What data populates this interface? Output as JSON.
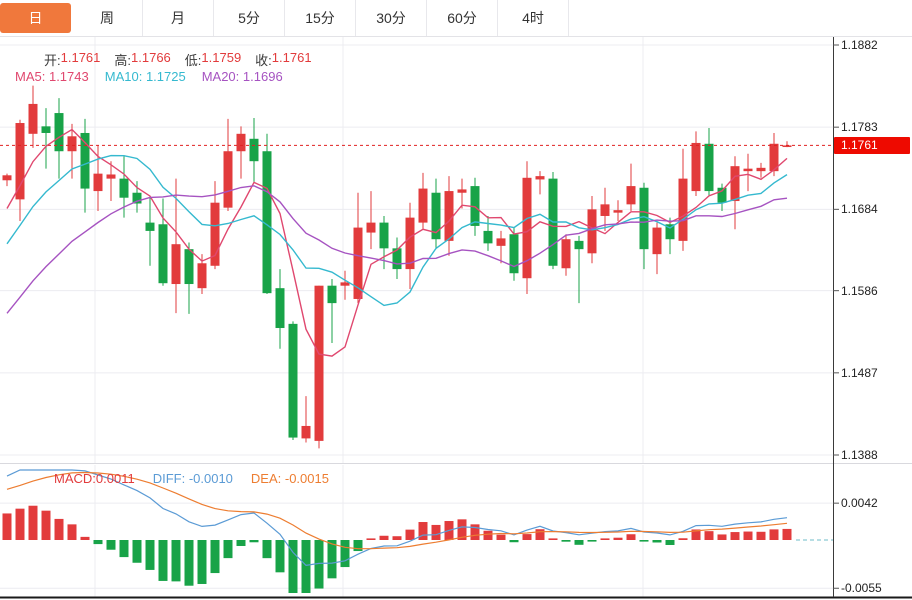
{
  "toolbar": {
    "tabs": [
      {
        "name": "tab-day",
        "label": "日",
        "active": true
      },
      {
        "name": "tab-week",
        "label": "周",
        "active": false
      },
      {
        "name": "tab-month",
        "label": "月",
        "active": false
      },
      {
        "name": "tab-5min",
        "label": "5分",
        "active": false
      },
      {
        "name": "tab-15min",
        "label": "15分",
        "active": false
      },
      {
        "name": "tab-30min",
        "label": "30分",
        "active": false
      },
      {
        "name": "tab-60min",
        "label": "60分",
        "active": false
      },
      {
        "name": "tab-4hour",
        "label": "4时",
        "active": false
      }
    ]
  },
  "main_chart": {
    "ohlc": {
      "open_label": "开:",
      "open": "1.1761",
      "high_label": "高:",
      "high": "1.1766",
      "low_label": "低:",
      "low": "1.1759",
      "close_label": "收:",
      "close": "1.1761"
    },
    "ma": {
      "ma5_label": "MA5:",
      "ma5": "1.1743",
      "ma10_label": "MA10:",
      "ma10": "1.1725",
      "ma20_label": "MA20:",
      "ma20": "1.1696"
    },
    "y_axis_ticks": [
      "1.1882",
      "1.1783",
      "1.1684",
      "1.1586",
      "1.1487",
      "1.1388"
    ],
    "current_price": "1.1761"
  },
  "macd_panel": {
    "macd_label": "MACD:",
    "macd": "0.0011",
    "diff_label": "DIFF:",
    "diff": "-0.0010",
    "dea_label": "DEA:",
    "dea": "-0.0015",
    "y_axis_ticks": [
      "0.0042",
      "-0.0055"
    ]
  },
  "colors": {
    "up": "#e23b3c",
    "down": "#18a348",
    "active_tab": "#f0783c",
    "ma5": "#e0486f",
    "ma10": "#35b9cf",
    "ma20": "#a653c1",
    "diff_line": "#5b9bd5",
    "dea_line": "#ed7d31",
    "price_tag_bg": "#ee0a00",
    "grid": "#ececf1",
    "axis_line": "#3a3a3a",
    "zero_dash": "#9fd4db",
    "current_price_line": "#e02020"
  },
  "chart_data": {
    "type": "candlestick",
    "timeframe": "日",
    "price_axis": {
      "max": 1.1882,
      "min": 1.1388,
      "ticks": [
        1.1882,
        1.1783,
        1.1684,
        1.1586,
        1.1487,
        1.1388
      ]
    },
    "current_price": 1.1761,
    "indicators": {
      "ma5": 1.1743,
      "ma10": 1.1725,
      "ma20": 1.1696,
      "macd": 0.0011,
      "diff": -0.001,
      "dea": -0.0015
    },
    "macd_axis": {
      "ticks": [
        0.0042,
        -0.0055
      ]
    },
    "candles_format": [
      "open",
      "high",
      "low",
      "close"
    ],
    "candles": [
      [
        1.1719,
        1.1727,
        1.1712,
        1.1725
      ],
      [
        1.1696,
        1.1792,
        1.167,
        1.1788
      ],
      [
        1.1775,
        1.1833,
        1.1758,
        1.1811
      ],
      [
        1.1784,
        1.1806,
        1.1733,
        1.1776
      ],
      [
        1.18,
        1.1818,
        1.1721,
        1.1754
      ],
      [
        1.1754,
        1.1787,
        1.1721,
        1.1772
      ],
      [
        1.1776,
        1.1793,
        1.168,
        1.1709
      ],
      [
        1.1706,
        1.1761,
        1.1682,
        1.1727
      ],
      [
        1.1721,
        1.1742,
        1.1694,
        1.1726
      ],
      [
        1.1721,
        1.1748,
        1.1674,
        1.1698
      ],
      [
        1.1704,
        1.1718,
        1.168,
        1.1691
      ],
      [
        1.1668,
        1.17,
        1.1616,
        1.1658
      ],
      [
        1.1666,
        1.1697,
        1.1592,
        1.1595
      ],
      [
        1.1594,
        1.1721,
        1.1559,
        1.1642
      ],
      [
        1.1636,
        1.1644,
        1.1558,
        1.1594
      ],
      [
        1.1589,
        1.163,
        1.1582,
        1.1619
      ],
      [
        1.1616,
        1.1718,
        1.1612,
        1.1692
      ],
      [
        1.1686,
        1.1793,
        1.1682,
        1.1754
      ],
      [
        1.1754,
        1.1784,
        1.1721,
        1.1775
      ],
      [
        1.1769,
        1.1794,
        1.1716,
        1.1742
      ],
      [
        1.1754,
        1.1775,
        1.1582,
        1.1583
      ],
      [
        1.1589,
        1.1612,
        1.1516,
        1.1541
      ],
      [
        1.1546,
        1.1549,
        1.1406,
        1.1409
      ],
      [
        1.1408,
        1.1459,
        1.1403,
        1.1423
      ],
      [
        1.1405,
        1.1592,
        1.1396,
        1.1592
      ],
      [
        1.1592,
        1.16,
        1.1523,
        1.1571
      ],
      [
        1.1592,
        1.161,
        1.1575,
        1.1596
      ],
      [
        1.1576,
        1.1704,
        1.1571,
        1.1662
      ],
      [
        1.1656,
        1.1706,
        1.1636,
        1.1668
      ],
      [
        1.1668,
        1.1676,
        1.1612,
        1.1637
      ],
      [
        1.1637,
        1.165,
        1.16,
        1.1612
      ],
      [
        1.1612,
        1.1692,
        1.1588,
        1.1674
      ],
      [
        1.1668,
        1.1728,
        1.166,
        1.1709
      ],
      [
        1.1704,
        1.1721,
        1.1636,
        1.1648
      ],
      [
        1.1646,
        1.1724,
        1.1628,
        1.1706
      ],
      [
        1.1704,
        1.1721,
        1.1685,
        1.1708
      ],
      [
        1.1712,
        1.1722,
        1.1652,
        1.1664
      ],
      [
        1.1658,
        1.1676,
        1.1634,
        1.1643
      ],
      [
        1.164,
        1.1658,
        1.1619,
        1.1649
      ],
      [
        1.1654,
        1.1662,
        1.1598,
        1.1607
      ],
      [
        1.1601,
        1.1742,
        1.1582,
        1.1722
      ],
      [
        1.172,
        1.173,
        1.1702,
        1.1724
      ],
      [
        1.1721,
        1.1729,
        1.1612,
        1.1616
      ],
      [
        1.1613,
        1.1654,
        1.1604,
        1.1648
      ],
      [
        1.1646,
        1.1652,
        1.1571,
        1.1636
      ],
      [
        1.1631,
        1.17,
        1.1619,
        1.1684
      ],
      [
        1.1676,
        1.171,
        1.1658,
        1.169
      ],
      [
        1.168,
        1.1695,
        1.167,
        1.1683
      ],
      [
        1.169,
        1.1739,
        1.1682,
        1.1712
      ],
      [
        1.171,
        1.1716,
        1.1612,
        1.1636
      ],
      [
        1.163,
        1.1668,
        1.1606,
        1.1662
      ],
      [
        1.1666,
        1.1674,
        1.163,
        1.1648
      ],
      [
        1.1646,
        1.1757,
        1.1634,
        1.1721
      ],
      [
        1.1706,
        1.1778,
        1.17,
        1.1764
      ],
      [
        1.1763,
        1.1782,
        1.17,
        1.1706
      ],
      [
        1.171,
        1.1715,
        1.1682,
        1.1692
      ],
      [
        1.1694,
        1.1748,
        1.166,
        1.1736
      ],
      [
        1.173,
        1.1751,
        1.1706,
        1.1733
      ],
      [
        1.173,
        1.174,
        1.1722,
        1.1734
      ],
      [
        1.173,
        1.1776,
        1.1724,
        1.1763
      ],
      [
        1.1761,
        1.1766,
        1.1759,
        1.1761
      ]
    ]
  }
}
